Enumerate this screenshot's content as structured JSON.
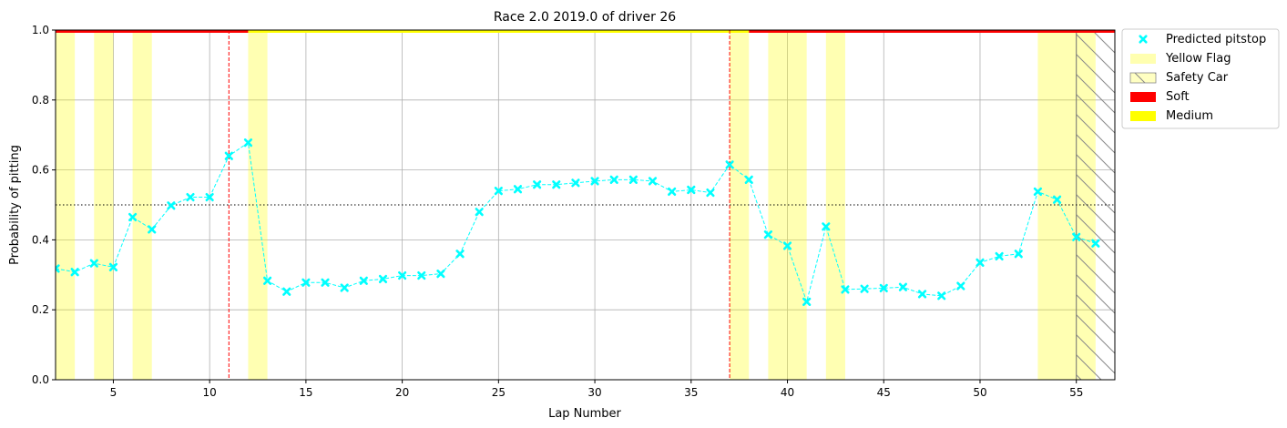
{
  "chart_data": {
    "type": "scatter",
    "title": "Race 2.0 2019.0 of driver 26",
    "xlabel": "Lap Number",
    "ylabel": "Probability of pitting",
    "xlim": [
      2,
      57
    ],
    "ylim": [
      0,
      1
    ],
    "x_ticks": [
      5,
      10,
      15,
      20,
      25,
      30,
      35,
      40,
      45,
      50,
      55
    ],
    "y_ticks": [
      0.0,
      0.2,
      0.4,
      0.6,
      0.8,
      1.0
    ],
    "grid": true,
    "threshold": 0.5,
    "pitstop_laps": [
      11,
      37
    ],
    "legend_position": "outside-upper-right",
    "legend": [
      {
        "label": "Predicted pitstop",
        "kind": "marker",
        "color": "#00ffff"
      },
      {
        "label": "Yellow Flag",
        "kind": "patch",
        "color": "#ffffb0"
      },
      {
        "label": "Safety Car",
        "kind": "hatch",
        "color": "#ffff99"
      },
      {
        "label": "Soft",
        "kind": "patch",
        "color": "#ff0000"
      },
      {
        "label": "Medium",
        "kind": "patch",
        "color": "#ffff00"
      }
    ],
    "series": [
      {
        "name": "Predicted pitstop",
        "color": "#00ffff",
        "x": [
          2,
          3,
          4,
          5,
          6,
          7,
          8,
          9,
          10,
          11,
          12,
          13,
          14,
          15,
          16,
          17,
          18,
          19,
          20,
          21,
          22,
          23,
          24,
          25,
          26,
          27,
          28,
          29,
          30,
          31,
          32,
          33,
          34,
          35,
          36,
          37,
          38,
          39,
          40,
          41,
          42,
          43,
          44,
          45,
          46,
          47,
          48,
          49,
          50,
          51,
          52,
          53,
          54,
          55,
          56
        ],
        "y": [
          0.318,
          0.308,
          0.333,
          0.322,
          0.465,
          0.43,
          0.498,
          0.522,
          0.522,
          0.64,
          0.678,
          0.283,
          0.252,
          0.278,
          0.278,
          0.263,
          0.283,
          0.288,
          0.298,
          0.298,
          0.303,
          0.36,
          0.48,
          0.54,
          0.545,
          0.558,
          0.558,
          0.563,
          0.568,
          0.572,
          0.572,
          0.568,
          0.538,
          0.543,
          0.535,
          0.615,
          0.572,
          0.415,
          0.383,
          0.223,
          0.438,
          0.258,
          0.26,
          0.262,
          0.265,
          0.245,
          0.24,
          0.268,
          0.335,
          0.353,
          0.36,
          0.538,
          0.515,
          0.408,
          0.39
        ]
      }
    ],
    "yellow_flags": [
      [
        2,
        3
      ],
      [
        4,
        5
      ],
      [
        6,
        7
      ],
      [
        12,
        13
      ],
      [
        37,
        38
      ],
      [
        39,
        41
      ],
      [
        42,
        43
      ],
      [
        53,
        56
      ]
    ],
    "safety_car": [
      [
        55,
        57
      ]
    ],
    "tyres": [
      {
        "compound": "Soft",
        "from": 2,
        "to": 12
      },
      {
        "compound": "Medium",
        "from": 12,
        "to": 38
      },
      {
        "compound": "Soft",
        "from": 38,
        "to": 57
      }
    ]
  }
}
